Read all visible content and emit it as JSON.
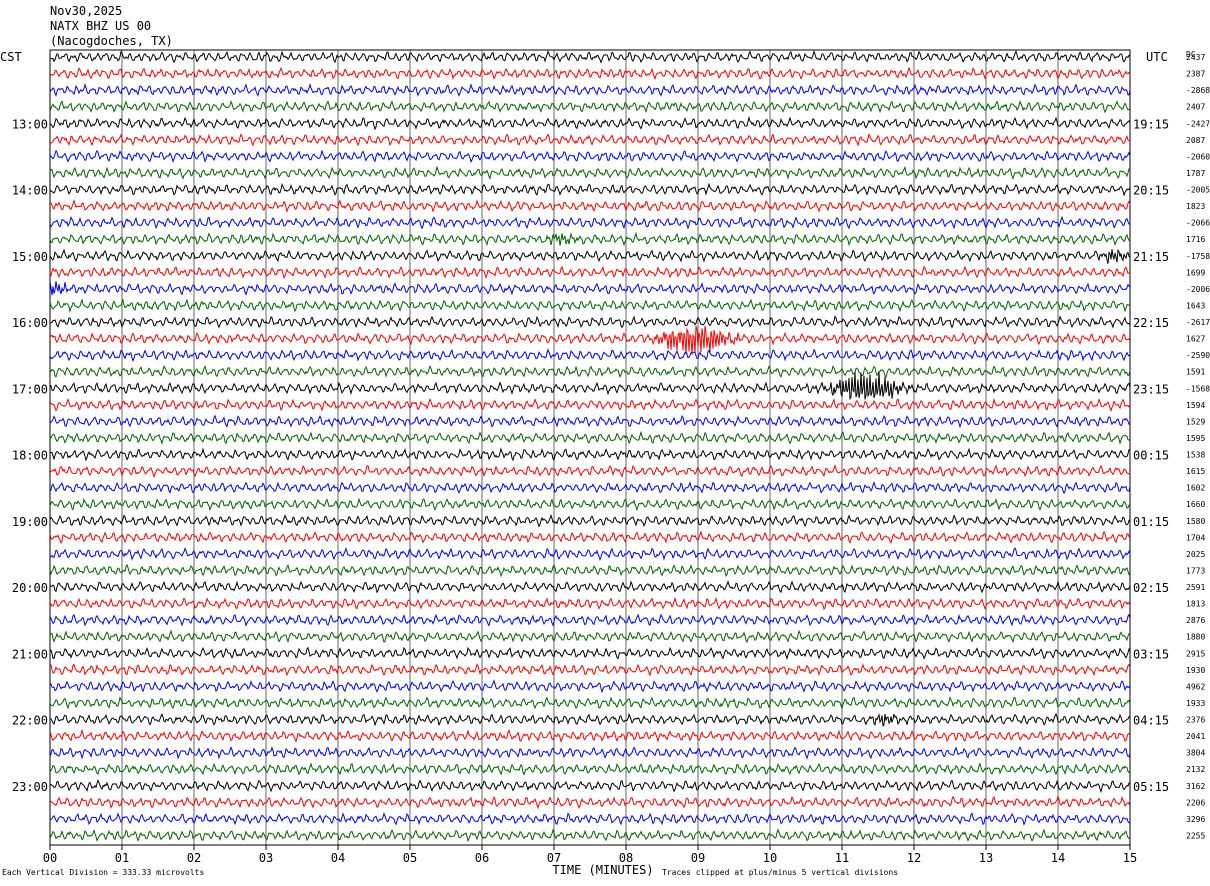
{
  "header": {
    "date": "Nov30,2025",
    "station": "NATX BHZ US 00",
    "location": "(Nacogdoches, TX)"
  },
  "left_zone": "CST",
  "right_zone": "UTC",
  "dc_label": "DC",
  "colors": {
    "black": "#000000",
    "red": "#ff0000",
    "blue": "#0000ff",
    "green": "#006400",
    "grid": "#000000"
  },
  "footer": {
    "scale": "Each Vertical Division = 333.33 microvolts",
    "clip": "Traces clipped at plus/minus 5 vertical divisions",
    "xlabel": "TIME (MINUTES)"
  },
  "chart_data": {
    "type": "line",
    "xlabel": "TIME (MINUTES)",
    "xlim": [
      0,
      15
    ],
    "x_ticks": [
      "00",
      "01",
      "02",
      "03",
      "04",
      "05",
      "06",
      "07",
      "08",
      "09",
      "10",
      "11",
      "12",
      "13",
      "14",
      "15"
    ],
    "left_hour_labels": [
      "13:00",
      "14:00",
      "15:00",
      "16:00",
      "17:00",
      "18:00",
      "19:00",
      "20:00",
      "21:00",
      "22:00",
      "23:00"
    ],
    "right_hour_labels": [
      "19:15",
      "20:15",
      "21:15",
      "22:15",
      "23:15",
      "00:15",
      "01:15",
      "02:15",
      "03:15",
      "04:15",
      "05:15"
    ],
    "trace_color_cycle": [
      "black",
      "red",
      "blue",
      "green"
    ],
    "trace_count": 48,
    "dc_offsets": [
      "2437",
      "2387",
      "-2868",
      "2407",
      "-2427",
      "2087",
      "-2060",
      "1787",
      "-2005",
      "1823",
      "-2066",
      "1716",
      "-1758",
      "1699",
      "-2006",
      "1643",
      "-2617",
      "1627",
      "-2590",
      "1591",
      "-1568",
      "1594",
      "1529",
      "1595",
      "1538",
      "1615",
      "1602",
      "1660",
      "1580",
      "1704",
      "2025",
      "1773",
      "2591",
      "1813",
      "2876",
      "1880",
      "2915",
      "1930",
      "4962",
      "1933",
      "2376",
      "2041",
      "3804",
      "2132",
      "3162",
      "2206",
      "3296",
      "2255"
    ],
    "events": [
      {
        "trace": 17,
        "minute": 8.95,
        "amplitude": "large"
      },
      {
        "trace": 20,
        "minute": 11.35,
        "amplitude": "large"
      },
      {
        "trace": 14,
        "minute": 0.05,
        "amplitude": "small"
      },
      {
        "trace": 40,
        "minute": 11.6,
        "amplitude": "small"
      },
      {
        "trace": 11,
        "minute": 7.1,
        "amplitude": "small"
      },
      {
        "trace": 12,
        "minute": 14.8,
        "amplitude": "small"
      }
    ]
  }
}
